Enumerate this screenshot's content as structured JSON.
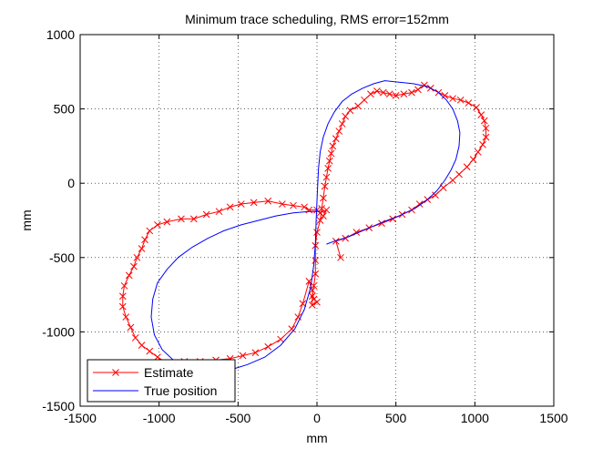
{
  "chart_data": {
    "type": "line",
    "title": "Minimum trace scheduling, RMS error=152mm",
    "xlabel": "mm",
    "ylabel": "mm",
    "xlim": [
      -1500,
      1500
    ],
    "ylim": [
      -1500,
      1000
    ],
    "xticks": [
      -1500,
      -1000,
      -500,
      0,
      500,
      1000,
      1500
    ],
    "yticks": [
      -1500,
      -1000,
      -500,
      0,
      500,
      1000
    ],
    "xtick_labels": [
      "-1500",
      "-1000",
      "-500",
      "0",
      "500",
      "1000",
      "1500"
    ],
    "ytick_labels": [
      "-1500",
      "-1000",
      "-500",
      "0",
      "500",
      "1000"
    ],
    "grid": true,
    "legend_position": "bottom-left",
    "series": [
      {
        "name": "Estimate",
        "color": "#ff0000",
        "marker": "x",
        "points": [
          [
            150,
            -500
          ],
          [
            120,
            -390
          ],
          [
            180,
            -370
          ],
          [
            250,
            -330
          ],
          [
            330,
            -300
          ],
          [
            410,
            -270
          ],
          [
            480,
            -240
          ],
          [
            540,
            -210
          ],
          [
            600,
            -180
          ],
          [
            650,
            -140
          ],
          [
            700,
            -110
          ],
          [
            750,
            -80
          ],
          [
            800,
            -30
          ],
          [
            860,
            20
          ],
          [
            900,
            60
          ],
          [
            950,
            110
          ],
          [
            990,
            160
          ],
          [
            1020,
            210
          ],
          [
            1050,
            260
          ],
          [
            1070,
            310
          ],
          [
            1070,
            370
          ],
          [
            1060,
            420
          ],
          [
            1040,
            460
          ],
          [
            1010,
            510
          ],
          [
            960,
            540
          ],
          [
            910,
            560
          ],
          [
            860,
            570
          ],
          [
            810,
            590
          ],
          [
            770,
            610
          ],
          [
            720,
            640
          ],
          [
            680,
            660
          ],
          [
            640,
            630
          ],
          [
            600,
            610
          ],
          [
            550,
            600
          ],
          [
            500,
            590
          ],
          [
            460,
            600
          ],
          [
            420,
            610
          ],
          [
            380,
            620
          ],
          [
            340,
            600
          ],
          [
            300,
            560
          ],
          [
            260,
            520
          ],
          [
            210,
            490
          ],
          [
            180,
            450
          ],
          [
            160,
            400
          ],
          [
            140,
            350
          ],
          [
            120,
            300
          ],
          [
            100,
            250
          ],
          [
            90,
            200
          ],
          [
            80,
            150
          ],
          [
            70,
            100
          ],
          [
            60,
            40
          ],
          [
            50,
            -20
          ],
          [
            40,
            -100
          ],
          [
            30,
            -170
          ],
          [
            20,
            -250
          ],
          [
            0,
            -330
          ],
          [
            -10,
            -420
          ],
          [
            -10,
            -520
          ],
          [
            -10,
            -610
          ],
          [
            -20,
            -690
          ],
          [
            -30,
            -760
          ],
          [
            -30,
            -820
          ],
          [
            0,
            -800
          ],
          [
            -20,
            -780
          ],
          [
            -30,
            -720
          ],
          [
            -50,
            -660
          ],
          [
            -90,
            -810
          ],
          [
            -120,
            -900
          ],
          [
            -160,
            -980
          ],
          [
            -230,
            -1050
          ],
          [
            -310,
            -1100
          ],
          [
            -390,
            -1140
          ],
          [
            -470,
            -1160
          ],
          [
            -550,
            -1180
          ],
          [
            -640,
            -1190
          ],
          [
            -740,
            -1200
          ],
          [
            -840,
            -1200
          ],
          [
            -950,
            -1210
          ],
          [
            -1010,
            -1170
          ],
          [
            -1060,
            -1130
          ],
          [
            -1110,
            -1090
          ],
          [
            -1150,
            -1040
          ],
          [
            -1180,
            -970
          ],
          [
            -1210,
            -900
          ],
          [
            -1230,
            -830
          ],
          [
            -1230,
            -760
          ],
          [
            -1220,
            -690
          ],
          [
            -1190,
            -620
          ],
          [
            -1160,
            -560
          ],
          [
            -1140,
            -500
          ],
          [
            -1110,
            -440
          ],
          [
            -1090,
            -380
          ],
          [
            -1060,
            -320
          ],
          [
            -1010,
            -280
          ],
          [
            -950,
            -260
          ],
          [
            -860,
            -240
          ],
          [
            -780,
            -240
          ],
          [
            -700,
            -210
          ],
          [
            -620,
            -190
          ],
          [
            -550,
            -160
          ],
          [
            -480,
            -140
          ],
          [
            -400,
            -130
          ],
          [
            -310,
            -120
          ],
          [
            -220,
            -140
          ],
          [
            -150,
            -150
          ],
          [
            -80,
            -160
          ],
          [
            -50,
            -180
          ],
          [
            0,
            -180
          ],
          [
            20,
            -200
          ],
          [
            60,
            -180
          ],
          [
            40,
            -220
          ]
        ]
      },
      {
        "name": "True position",
        "color": "#0000ff",
        "marker": "none",
        "points": [
          [
            60,
            -410
          ],
          [
            110,
            -390
          ],
          [
            200,
            -360
          ],
          [
            310,
            -310
          ],
          [
            420,
            -260
          ],
          [
            520,
            -220
          ],
          [
            620,
            -170
          ],
          [
            700,
            -110
          ],
          [
            760,
            -50
          ],
          [
            810,
            20
          ],
          [
            850,
            90
          ],
          [
            880,
            160
          ],
          [
            900,
            250
          ],
          [
            905,
            340
          ],
          [
            890,
            420
          ],
          [
            860,
            500
          ],
          [
            820,
            560
          ],
          [
            770,
            610
          ],
          [
            700,
            650
          ],
          [
            610,
            670
          ],
          [
            520,
            680
          ],
          [
            430,
            690
          ],
          [
            360,
            670
          ],
          [
            290,
            640
          ],
          [
            220,
            600
          ],
          [
            160,
            550
          ],
          [
            110,
            480
          ],
          [
            70,
            400
          ],
          [
            40,
            310
          ],
          [
            20,
            210
          ],
          [
            10,
            100
          ],
          [
            5,
            0
          ],
          [
            0,
            -120
          ],
          [
            -5,
            -250
          ],
          [
            -10,
            -400
          ],
          [
            -20,
            -550
          ],
          [
            -40,
            -700
          ],
          [
            -80,
            -850
          ],
          [
            -140,
            -980
          ],
          [
            -230,
            -1090
          ],
          [
            -330,
            -1170
          ],
          [
            -440,
            -1220
          ],
          [
            -560,
            -1260
          ],
          [
            -680,
            -1270
          ],
          [
            -800,
            -1250
          ],
          [
            -900,
            -1200
          ],
          [
            -980,
            -1120
          ],
          [
            -1030,
            -1020
          ],
          [
            -1050,
            -900
          ],
          [
            -1040,
            -780
          ],
          [
            -1010,
            -670
          ],
          [
            -950,
            -580
          ],
          [
            -880,
            -500
          ],
          [
            -790,
            -430
          ],
          [
            -690,
            -370
          ],
          [
            -590,
            -320
          ],
          [
            -480,
            -280
          ],
          [
            -370,
            -250
          ],
          [
            -260,
            -220
          ],
          [
            -150,
            -200
          ],
          [
            -50,
            -190
          ],
          [
            20,
            -190
          ]
        ]
      }
    ]
  }
}
